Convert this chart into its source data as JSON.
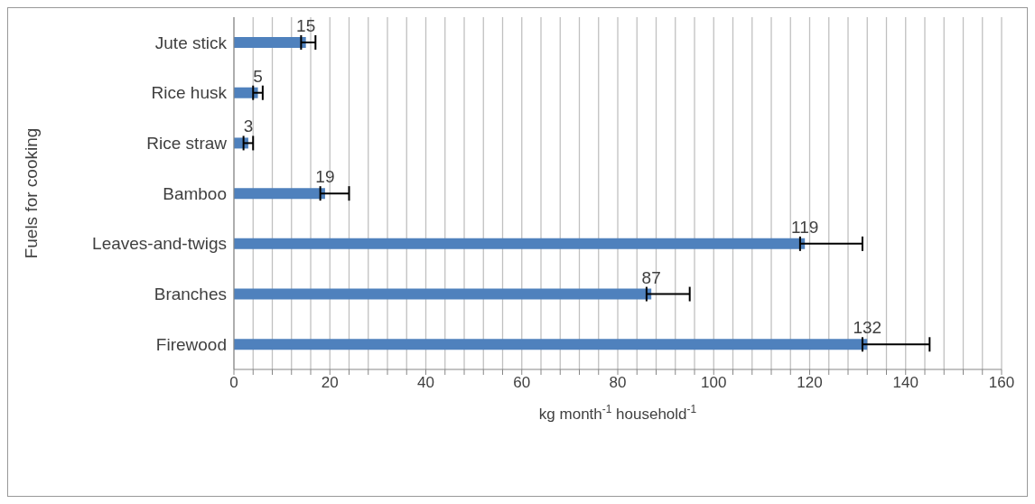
{
  "chart_data": {
    "type": "bar",
    "orientation": "horizontal",
    "xlabel": "kg month$^{-1}$ household$^{-1}$",
    "ylabel": "Fuels for cooking",
    "categories": [
      "Jute stick",
      "Rice husk",
      "Rice straw",
      "Bamboo",
      "Leaves-and-twigs",
      "Branches",
      "Firewood"
    ],
    "values": [
      15,
      5,
      3,
      19,
      119,
      87,
      132
    ],
    "errors": [
      [
        14,
        17
      ],
      [
        4,
        6
      ],
      [
        2,
        4
      ],
      [
        18,
        24
      ],
      [
        118,
        131
      ],
      [
        86,
        95
      ],
      [
        131,
        145
      ]
    ],
    "color": "#4f81bd",
    "data_labels": true,
    "grid": "x",
    "legend": false,
    "xlim": [
      0,
      160
    ],
    "xticks": [
      0,
      {
        "value": 4,
        "label": null
      },
      {
        "value": 8,
        "label": null
      },
      {
        "value": 12,
        "label": null
      },
      {
        "value": 16,
        "label": null
      },
      20,
      {
        "value": 24,
        "label": null
      },
      {
        "value": 28,
        "label": null
      },
      {
        "value": 32,
        "label": null
      },
      {
        "value": 36,
        "label": null
      },
      40,
      {
        "value": 44,
        "label": null
      },
      {
        "value": 48,
        "label": null
      },
      {
        "value": 52,
        "label": null
      },
      {
        "value": 56,
        "label": null
      },
      60,
      {
        "value": 64,
        "label": null
      },
      {
        "value": 68,
        "label": null
      },
      {
        "value": 72,
        "label": null
      },
      {
        "value": 76,
        "label": null
      },
      80,
      {
        "value": 84,
        "label": null
      },
      {
        "value": 88,
        "label": null
      },
      {
        "value": 92,
        "label": null
      },
      {
        "value": 96,
        "label": null
      },
      100,
      {
        "value": 104,
        "label": null
      },
      {
        "value": 108,
        "label": null
      },
      {
        "value": 112,
        "label": null
      },
      {
        "value": 116,
        "label": null
      },
      120,
      {
        "value": 124,
        "label": null
      },
      {
        "value": 128,
        "label": null
      },
      {
        "value": 132,
        "label": null
      },
      {
        "value": 136,
        "label": null
      },
      140,
      {
        "value": 144,
        "label": null
      },
      {
        "value": 148,
        "label": null
      },
      {
        "value": 152,
        "label": null
      },
      {
        "value": 156,
        "label": null
      },
      160
    ]
  }
}
